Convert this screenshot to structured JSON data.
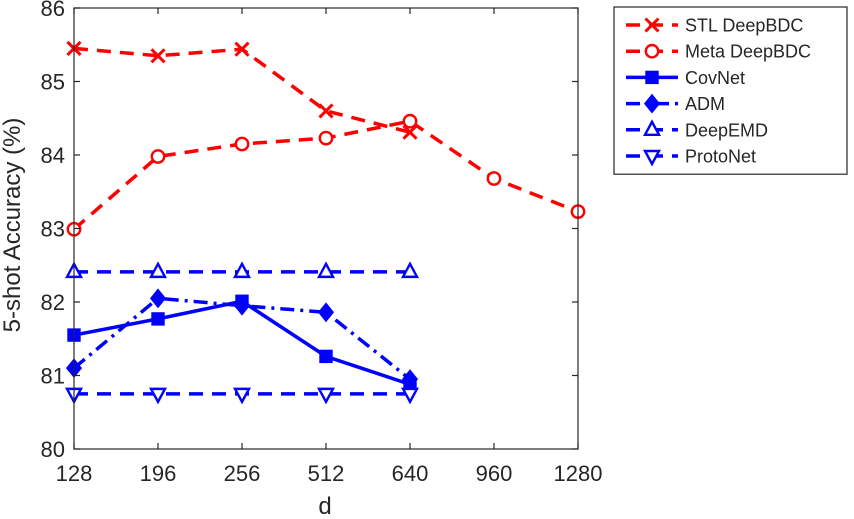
{
  "chart_data": {
    "type": "line",
    "xlabel": "d",
    "ylabel": "5-shot Accuracy (%)",
    "categories": [
      "128",
      "196",
      "256",
      "512",
      "640",
      "960",
      "1280"
    ],
    "ylim": [
      80,
      86
    ],
    "yticks": [
      80,
      81,
      82,
      83,
      84,
      85,
      86
    ],
    "grid": false,
    "legend_position": "outside-top-right",
    "series": [
      {
        "name": "STL DeepBDC",
        "color": "#ff0000",
        "line": "dashed",
        "marker": "x",
        "values": [
          85.45,
          85.35,
          85.44,
          84.6,
          84.31,
          null,
          null
        ]
      },
      {
        "name": "Meta DeepBDC",
        "color": "#ff0000",
        "line": "dashed",
        "marker": "circle",
        "values": [
          82.99,
          83.98,
          84.15,
          84.23,
          84.46,
          83.68,
          83.23
        ]
      },
      {
        "name": "CovNet",
        "color": "#0000ff",
        "line": "solid",
        "marker": "square",
        "values": [
          81.55,
          81.77,
          82.01,
          81.26,
          80.88,
          null,
          null
        ]
      },
      {
        "name": "ADM",
        "color": "#0000ff",
        "line": "dashdot",
        "marker": "diamond",
        "values": [
          81.1,
          82.05,
          81.95,
          81.86,
          80.95,
          null,
          null
        ]
      },
      {
        "name": "DeepEMD",
        "color": "#0000ff",
        "line": "dashed",
        "marker": "triangle-up",
        "values": [
          82.41,
          82.41,
          82.41,
          82.41,
          82.41,
          null,
          null
        ]
      },
      {
        "name": "ProtoNet",
        "color": "#0000ff",
        "line": "dashed",
        "marker": "triangle-down",
        "values": [
          80.75,
          80.75,
          80.75,
          80.75,
          80.75,
          null,
          null
        ]
      }
    ]
  }
}
